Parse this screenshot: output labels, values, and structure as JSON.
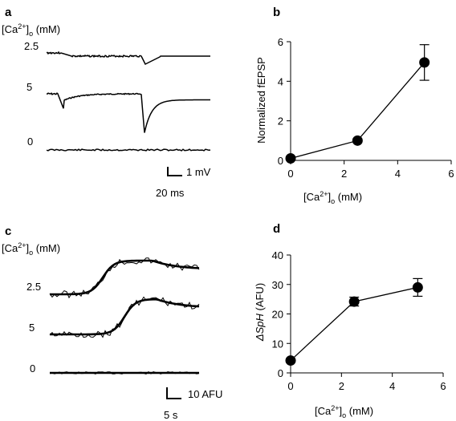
{
  "panels": {
    "a": {
      "letter": "a",
      "header": "[Ca2+]o (mM)",
      "trace_labels": [
        "2.5",
        "5",
        "0"
      ],
      "scalebar": {
        "y_label": "1 mV",
        "x_label": "20 ms"
      }
    },
    "c": {
      "letter": "c",
      "header": "[Ca2+]o (mM)",
      "trace_labels": [
        "2.5",
        "5",
        "0"
      ],
      "scalebar": {
        "y_label": "10 AFU",
        "x_label": "5 s"
      }
    }
  },
  "chart_data": [
    {
      "panel": "b",
      "type": "line",
      "markers": "filled-circle",
      "xlabel": "[Ca2+]o (mM)",
      "ylabel": "Normalized fEPSP",
      "xlim": [
        0,
        6
      ],
      "ylim": [
        0,
        6
      ],
      "xticks": [
        0,
        2,
        4,
        6
      ],
      "yticks": [
        0,
        2,
        4,
        6
      ],
      "x": [
        0,
        2.5,
        5
      ],
      "y": [
        0.1,
        1.0,
        4.95
      ],
      "error": [
        0,
        0,
        0.9
      ]
    },
    {
      "panel": "d",
      "type": "line",
      "markers": "filled-circle",
      "xlabel": "[Ca2+]o (mM)",
      "ylabel": "ΔSpH (AFU)",
      "xlim": [
        0,
        6
      ],
      "ylim": [
        0,
        40
      ],
      "xticks": [
        0,
        2,
        4,
        6
      ],
      "yticks": [
        0,
        10,
        20,
        30,
        40
      ],
      "x": [
        0,
        2.5,
        5
      ],
      "y": [
        4.2,
        24.2,
        29.0
      ],
      "error": [
        0,
        1.5,
        3.0
      ]
    }
  ]
}
